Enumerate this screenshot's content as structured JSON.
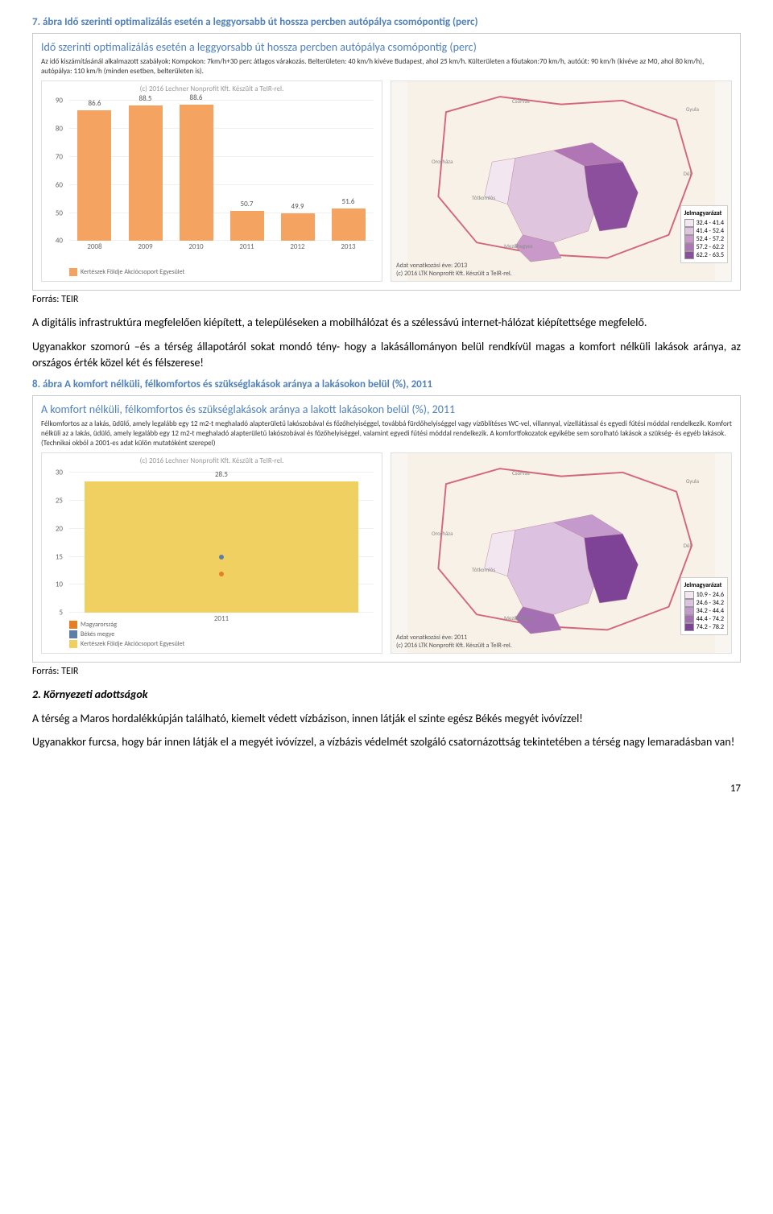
{
  "figure7": {
    "caption": "7. ábra Idő szerinti optimalizálás esetén a leggyorsabb út hossza percben autópálya csomópontig (perc)",
    "panel_title": "Idő szerinti optimalizálás esetén a leggyorsabb út hossza percben autópálya csomópontig (perc)",
    "panel_subtitle": "Az idő kiszámításánál alkalmazott szabályok: Kompokon: 7km/h+30 perc átlagos várakozás. Belterületen: 40 km/h kivéve Budapest, ahol 25 km/h. Külterületen a főutakon:70 km/h, autóút: 90 km/h (kivéve az M0, ahol 80 km/h), autópálya: 110 km/h (minden esetben, belterületen is).",
    "attr_text": "(c) 2016 Lechner Nonprofit Kft. Készült a TeIR-rel.",
    "chart": {
      "categories": [
        "2008",
        "2009",
        "2010",
        "2011",
        "2012",
        "2013"
      ],
      "values": [
        86.6,
        88.5,
        88.6,
        50.7,
        49.9,
        51.6
      ],
      "bar_color": "#f4a460",
      "ylim": [
        40,
        90
      ],
      "yticks": [
        40,
        50,
        60,
        70,
        80,
        90
      ],
      "legend_label": "Kertészek Földje Akciócsoport Egyesület"
    },
    "map": {
      "year_label": "Adat vonatkozási éve: 2013",
      "attr": "(c) 2016 LTK Nonprofit Kft. Készült a TeIR-rel.",
      "legend_title": "Jelmagyarázat",
      "legend": [
        {
          "label": "32.4 - 41.4",
          "color": "#f2e6f0"
        },
        {
          "label": "41.4 - 52.4",
          "color": "#e0c5de"
        },
        {
          "label": "52.4 - 57.2",
          "color": "#c99ac9"
        },
        {
          "label": "57.2 - 62.2",
          "color": "#b075b5"
        },
        {
          "label": "62.2 - 63.5",
          "color": "#8b4f9e"
        }
      ],
      "place_labels": [
        "Csorvás",
        "Gyula",
        "Orosháza",
        "Dél",
        "Tótkomlós",
        "Mezőhegyes"
      ]
    }
  },
  "source_text": "Forrás: TEIR",
  "paragraph1": "A digitális infrastruktúra megfelelően kiépített, a településeken a mobilhálózat és a szélessávú internet-hálózat kiépítettsége megfelelő.",
  "paragraph2": "Ugyanakkor szomorú –és a térség állapotáról sokat mondó tény- hogy a lakásállományon belül rendkívül magas a komfort nélküli lakások aránya, az országos érték közel két és félszerese!",
  "figure8": {
    "caption": "8. ábra A komfort nélküli, félkomfortos és szükséglakások aránya a lakásokon belül (%), 2011",
    "panel_title": "A komfort nélküli, félkomfortos és szükséglakások aránya a lakott lakásokon belül (%), 2011",
    "panel_subtitle": "Félkomfortos az a lakás, üdülő, amely legalább egy 12 m2-t meghaladó alapterületű lakószobával és főzőhelyiséggel, továbbá fürdőhelyiséggel vagy vízöblítéses WC-vel, villannyal, vízellátással és egyedi fűtési móddal rendelkezik. Komfort nélküli az a lakás, üdülő, amely legalább egy 12 m2-t meghaladó alapterületű lakószobával és főzőhelyiséggel, valamint egyedi fűtési móddal rendelkezik. A komfortfokozatok egyikébe sem sorolható lakások a szükség- és egyéb lakások. (Technikai okból a 2001-es adat külön mutatóként szerepel)",
    "attr_text": "(c) 2016 Lechner Nonprofit Kft. Készült a TeIR-rel.",
    "chart": {
      "categories": [
        "2011"
      ],
      "bar_value": 28.5,
      "bar_color": "#f0d060",
      "dots": [
        {
          "value": 12,
          "color": "#e67e22",
          "label": "Magyarország"
        },
        {
          "value": 15,
          "color": "#5b7fa6",
          "label": "Békés megye"
        }
      ],
      "ylim": [
        5,
        30
      ],
      "yticks": [
        5,
        10,
        15,
        20,
        25,
        30
      ],
      "legend": [
        {
          "label": "Magyarország",
          "color": "#e67e22"
        },
        {
          "label": "Békés megye",
          "color": "#5b7fa6"
        },
        {
          "label": "Kertészek Földje Akciócsoport Egyesület",
          "color": "#f0d060"
        }
      ]
    },
    "map": {
      "year_label": "Adat vonatkozási éve: 2011",
      "attr": "(c) 2016 LTK Nonprofit Kft. Készült a TeIR-rel.",
      "legend_title": "Jelmagyarázat",
      "legend": [
        {
          "label": "10.9 - 24.6",
          "color": "#f2e6f0"
        },
        {
          "label": "24.6 - 34.2",
          "color": "#dcc2e0"
        },
        {
          "label": "34.2 - 44.4",
          "color": "#c49acc"
        },
        {
          "label": "44.4 - 74.2",
          "color": "#a56fb3"
        },
        {
          "label": "74.2 - 78.2",
          "color": "#7e4396"
        }
      ],
      "place_labels": [
        "Csorvás",
        "Gyula",
        "Orosháza",
        "Dél",
        "Tótkomlós",
        "Mezőhegyes"
      ]
    }
  },
  "section2": {
    "heading": "2. Környezeti adottságok",
    "p1": "A térség a Maros hordalékkúpján található, kiemelt védett vízbázison, innen látják el szinte egész Békés megyét ivóvízzel!",
    "p2": "Ugyanakkor furcsa, hogy bár innen látják el a megyét ivóvízzel, a vízbázis védelmét szolgáló csatornázottság tekintetében a térség nagy lemaradásban van!"
  },
  "page_number": "17"
}
